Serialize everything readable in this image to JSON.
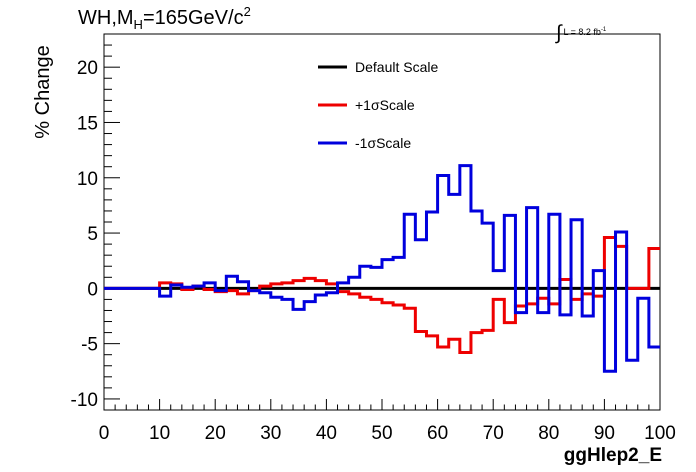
{
  "header": {
    "title_prefix": "WH,M",
    "title_sub": "H",
    "title_value": "=165GeV/c",
    "title_sup": "2",
    "lumi_integral": "∫",
    "lumi_text": "L = 8.2 fb",
    "lumi_sup": "-1"
  },
  "chart_data": {
    "type": "line",
    "step": true,
    "title": "WH,MH=165GeV/c2",
    "xlabel": "ggHlep2_E",
    "ylabel": "% Change",
    "xlim": [
      0,
      100
    ],
    "ylim": [
      -11,
      23
    ],
    "x_ticks": [
      0,
      10,
      20,
      30,
      40,
      50,
      60,
      70,
      80,
      90,
      100
    ],
    "x_tick_labels": [
      "0",
      "10",
      "20",
      "30",
      "40",
      "50",
      "60",
      "70",
      "80",
      "90",
      "100"
    ],
    "y_ticks": [
      -10,
      -5,
      0,
      5,
      10,
      15,
      20
    ],
    "y_tick_labels": [
      "-10",
      "-5",
      "0",
      "5",
      "10",
      "15",
      "20"
    ],
    "legend_position": "top-center",
    "grid": false,
    "bin_edges": [
      0,
      2,
      4,
      6,
      8,
      10,
      12,
      14,
      16,
      18,
      20,
      22,
      24,
      26,
      28,
      30,
      32,
      34,
      36,
      38,
      40,
      42,
      44,
      46,
      48,
      50,
      52,
      54,
      56,
      58,
      60,
      62,
      64,
      66,
      68,
      70,
      72,
      74,
      76,
      78,
      80,
      82,
      84,
      86,
      88,
      90,
      92,
      94,
      96,
      98,
      100
    ],
    "series": [
      {
        "name": "Default Scale",
        "color": "#000000",
        "values": [
          0,
          0,
          0,
          0,
          0,
          0,
          0,
          0,
          0,
          0,
          0,
          0,
          0,
          0,
          0,
          0,
          0,
          0,
          0,
          0,
          0,
          0,
          0,
          0,
          0,
          0,
          0,
          0,
          0,
          0,
          0,
          0,
          0,
          0,
          0,
          0,
          0,
          0,
          0,
          0,
          0,
          0,
          0,
          0,
          0,
          0,
          0,
          0,
          0,
          0
        ]
      },
      {
        "name": "+1σScale",
        "color": "#ee0000",
        "values": [
          0,
          0,
          0,
          0,
          0,
          0.5,
          0.4,
          -0.1,
          0.2,
          -0.1,
          -0.3,
          -0.2,
          -0.5,
          -0.2,
          0.2,
          0.4,
          0.5,
          0.7,
          0.9,
          0.7,
          0.4,
          -0.3,
          -0.5,
          -0.8,
          -1.0,
          -1.3,
          -1.5,
          -1.8,
          -3.9,
          -4.3,
          -5.3,
          -4.6,
          -5.8,
          -4.0,
          -3.8,
          -1.0,
          -3.1,
          -1.6,
          -1.4,
          -0.9,
          -1.4,
          0.8,
          -1.0,
          -0.5,
          -0.7,
          4.6,
          3.8,
          0.0,
          0.0,
          3.6
        ]
      },
      {
        "name": "-1σScale",
        "color": "#0000dd",
        "values": [
          0,
          0,
          0,
          0,
          0,
          -0.7,
          0.3,
          0.1,
          0.2,
          0.5,
          -0.2,
          1.1,
          0.6,
          -0.2,
          -0.4,
          -0.8,
          -1.0,
          -1.9,
          -1.2,
          -0.6,
          -0.4,
          0.5,
          1.0,
          2.0,
          1.9,
          2.6,
          2.8,
          6.7,
          4.4,
          6.9,
          10.2,
          8.5,
          11.1,
          7.0,
          5.9,
          1.6,
          6.6,
          -2.2,
          7.3,
          -2.2,
          6.7,
          -2.4,
          6.2,
          -2.5,
          1.6,
          -7.5,
          5.1,
          -6.5,
          -0.9,
          -5.3
        ]
      }
    ]
  }
}
